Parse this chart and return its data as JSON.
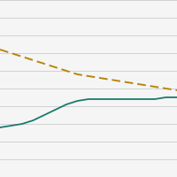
{
  "dashed_line": {
    "x": [
      0,
      1,
      2,
      3,
      4,
      5,
      6,
      7,
      8,
      9,
      10,
      11,
      12,
      13,
      14,
      15,
      16
    ],
    "y": [
      72,
      70,
      68,
      66,
      64,
      62,
      60,
      58,
      57,
      56,
      55,
      54,
      53,
      52,
      51,
      50,
      49
    ],
    "color": "#b8860b",
    "linewidth": 1.4,
    "dashes": [
      5,
      2.5
    ]
  },
  "solid_line": {
    "x": [
      0,
      1,
      2,
      3,
      4,
      5,
      6,
      7,
      8,
      9,
      10,
      11,
      12,
      13,
      14,
      15,
      16
    ],
    "y": [
      28,
      29,
      30,
      32,
      35,
      38,
      41,
      43,
      44,
      44,
      44,
      44,
      44,
      44,
      44,
      45,
      45
    ],
    "color": "#1a7a6e",
    "linewidth": 1.3,
    "linestyle": "-"
  },
  "background_color": "#f5f5f5",
  "grid_color": "#cccccc",
  "ylim": [
    0,
    100
  ],
  "xlim": [
    0,
    16
  ],
  "figsize": [
    2.0,
    2.0
  ],
  "dpi": 100,
  "yticks": [
    0,
    10,
    20,
    30,
    40,
    50,
    60,
    70,
    80,
    90,
    100
  ]
}
